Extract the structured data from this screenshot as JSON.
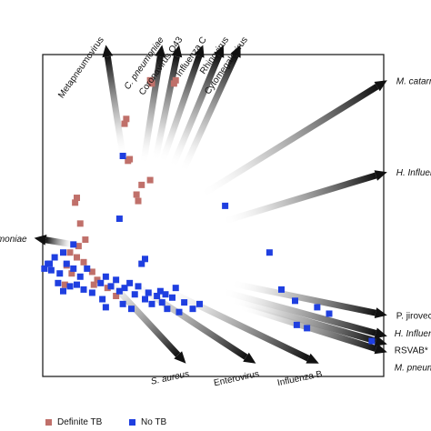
{
  "chart_data": {
    "type": "scatter",
    "title": "",
    "xlabel": "",
    "ylabel": "",
    "grid": false,
    "legend": "bottom-left",
    "colors": {
      "definite_tb": "#c0706a",
      "no_tb": "#1f3fe0",
      "arrow_dark": "#111111",
      "frame": "#222222"
    },
    "xlim": [
      -1,
      1
    ],
    "ylim": [
      -1,
      1
    ],
    "series": [
      {
        "name": "Definite TB",
        "points": [
          [
            -0.37,
            0.84
          ],
          [
            -0.36,
            0.82
          ],
          [
            -0.22,
            0.84
          ],
          [
            -0.23,
            0.82
          ],
          [
            -0.51,
            0.6
          ],
          [
            -0.52,
            0.57
          ],
          [
            -0.49,
            0.35
          ],
          [
            -0.5,
            0.34
          ],
          [
            -0.45,
            0.13
          ],
          [
            -0.37,
            0.22
          ],
          [
            -0.42,
            0.19
          ],
          [
            -0.44,
            0.09
          ],
          [
            -0.8,
            0.11
          ],
          [
            -0.81,
            0.08
          ],
          [
            -0.78,
            -0.05
          ],
          [
            -0.75,
            -0.15
          ],
          [
            -0.79,
            -0.19
          ],
          [
            -0.84,
            -0.23
          ],
          [
            -0.8,
            -0.26
          ],
          [
            -0.76,
            -0.29
          ],
          [
            -0.86,
            -0.31
          ],
          [
            -0.83,
            -0.36
          ],
          [
            -0.71,
            -0.35
          ],
          [
            -0.68,
            -0.4
          ],
          [
            -0.7,
            -0.43
          ],
          [
            -0.87,
            -0.43
          ],
          [
            -0.62,
            -0.45
          ],
          [
            -0.57,
            -0.5
          ]
        ]
      },
      {
        "name": "No TB",
        "points": [
          [
            -0.53,
            0.37
          ],
          [
            -0.55,
            -0.02
          ],
          [
            0.07,
            0.06
          ],
          [
            0.33,
            -0.23
          ],
          [
            -0.82,
            -0.18
          ],
          [
            -0.88,
            -0.23
          ],
          [
            -0.93,
            -0.26
          ],
          [
            -0.97,
            -0.3
          ],
          [
            -0.95,
            -0.34
          ],
          [
            -0.9,
            -0.36
          ],
          [
            -0.86,
            -0.3
          ],
          [
            -0.82,
            -0.33
          ],
          [
            -0.78,
            -0.38
          ],
          [
            -0.74,
            -0.33
          ],
          [
            -0.91,
            -0.42
          ],
          [
            -0.88,
            -0.47
          ],
          [
            -0.84,
            -0.44
          ],
          [
            -0.8,
            -0.43
          ],
          [
            -0.76,
            -0.46
          ],
          [
            -0.71,
            -0.48
          ],
          [
            -0.66,
            -0.42
          ],
          [
            -0.63,
            -0.38
          ],
          [
            -0.6,
            -0.44
          ],
          [
            -0.57,
            -0.4
          ],
          [
            -0.55,
            -0.47
          ],
          [
            -0.52,
            -0.45
          ],
          [
            -0.49,
            -0.42
          ],
          [
            -0.46,
            -0.49
          ],
          [
            -0.44,
            -0.44
          ],
          [
            -0.4,
            -0.52
          ],
          [
            -0.38,
            -0.48
          ],
          [
            -0.36,
            -0.55
          ],
          [
            -0.33,
            -0.5
          ],
          [
            -0.3,
            -0.54
          ],
          [
            -0.31,
            -0.47
          ],
          [
            -0.28,
            -0.49
          ],
          [
            -0.27,
            -0.58
          ],
          [
            -0.24,
            -0.51
          ],
          [
            -0.22,
            -0.45
          ],
          [
            -0.2,
            -0.6
          ],
          [
            -0.17,
            -0.54
          ],
          [
            -0.12,
            -0.58
          ],
          [
            -0.08,
            -0.55
          ],
          [
            -0.65,
            -0.52
          ],
          [
            -0.63,
            -0.57
          ],
          [
            -0.53,
            -0.55
          ],
          [
            -0.48,
            -0.58
          ],
          [
            0.4,
            -0.46
          ],
          [
            0.48,
            -0.53
          ],
          [
            0.49,
            -0.68
          ],
          [
            0.55,
            -0.7
          ],
          [
            0.68,
            -0.61
          ],
          [
            0.61,
            -0.57
          ],
          [
            0.93,
            -0.78
          ],
          [
            -0.96,
            -0.3
          ],
          [
            -0.99,
            -0.33
          ],
          [
            -0.42,
            -0.3
          ],
          [
            -0.4,
            -0.27
          ]
        ]
      }
    ],
    "loadings": [
      {
        "label": "Metapneumovirus",
        "italic": false,
        "from": [
          -0.53,
          0.37
        ],
        "to": [
          -0.63,
          1.06
        ]
      },
      {
        "label": "C. pneumoniae",
        "italic": true,
        "from": [
          -0.41,
          0.32
        ],
        "to": [
          -0.3,
          1.06
        ]
      },
      {
        "label": "Coronavirus O43",
        "italic": false,
        "from": [
          -0.34,
          0.34
        ],
        "to": [
          -0.2,
          1.06
        ]
      },
      {
        "label": "Influenza C",
        "italic": false,
        "from": [
          -0.3,
          0.33
        ],
        "to": [
          -0.06,
          1.06
        ]
      },
      {
        "label": "Rhinovirus",
        "italic": false,
        "from": [
          -0.24,
          0.3
        ],
        "to": [
          0.06,
          1.06
        ]
      },
      {
        "label": "Cytomegalovirus",
        "italic": false,
        "from": [
          -0.18,
          0.27
        ],
        "to": [
          0.16,
          1.06
        ]
      },
      {
        "label": "M. catarrhalis",
        "italic": true,
        "from": [
          -0.08,
          0.12
        ],
        "to": [
          1.02,
          0.84
        ]
      },
      {
        "label": "H. Influenzae",
        "italic": true,
        "from": [
          0.05,
          -0.04
        ],
        "to": [
          1.02,
          0.27
        ]
      },
      {
        "label": "S. pneumoniae",
        "italic": true,
        "from": [
          -0.82,
          -0.18
        ],
        "to": [
          -1.05,
          -0.14
        ]
      },
      {
        "label": "P. jirovecii",
        "italic": false,
        "from": [
          0.1,
          -0.42
        ],
        "to": [
          1.02,
          -0.62
        ]
      },
      {
        "label": "H. Influenzae",
        "italic": true,
        "from": [
          0.05,
          -0.47
        ],
        "to": [
          1.02,
          -0.75
        ]
      },
      {
        "label": "RSVAB*",
        "italic": false,
        "from": [
          0.1,
          -0.52
        ],
        "to": [
          1.02,
          -0.8
        ]
      },
      {
        "label": "M. pneumoniae",
        "italic": true,
        "from": [
          0.15,
          -0.56
        ],
        "to": [
          1.02,
          -0.85
        ]
      },
      {
        "label": "S. aureus",
        "italic": true,
        "from": [
          -0.65,
          -0.36
        ],
        "to": [
          -0.16,
          -0.92
        ]
      },
      {
        "label": "Enterovirus",
        "italic": false,
        "from": [
          -0.5,
          -0.4
        ],
        "to": [
          0.25,
          -0.92
        ]
      },
      {
        "label": "Influenza B",
        "italic": false,
        "from": [
          -0.3,
          -0.45
        ],
        "to": [
          0.62,
          -0.92
        ]
      }
    ]
  },
  "legend": {
    "items": [
      {
        "label": "Definite TB",
        "color": "#c0706a"
      },
      {
        "label": "No TB",
        "color": "#1f3fe0"
      }
    ]
  }
}
